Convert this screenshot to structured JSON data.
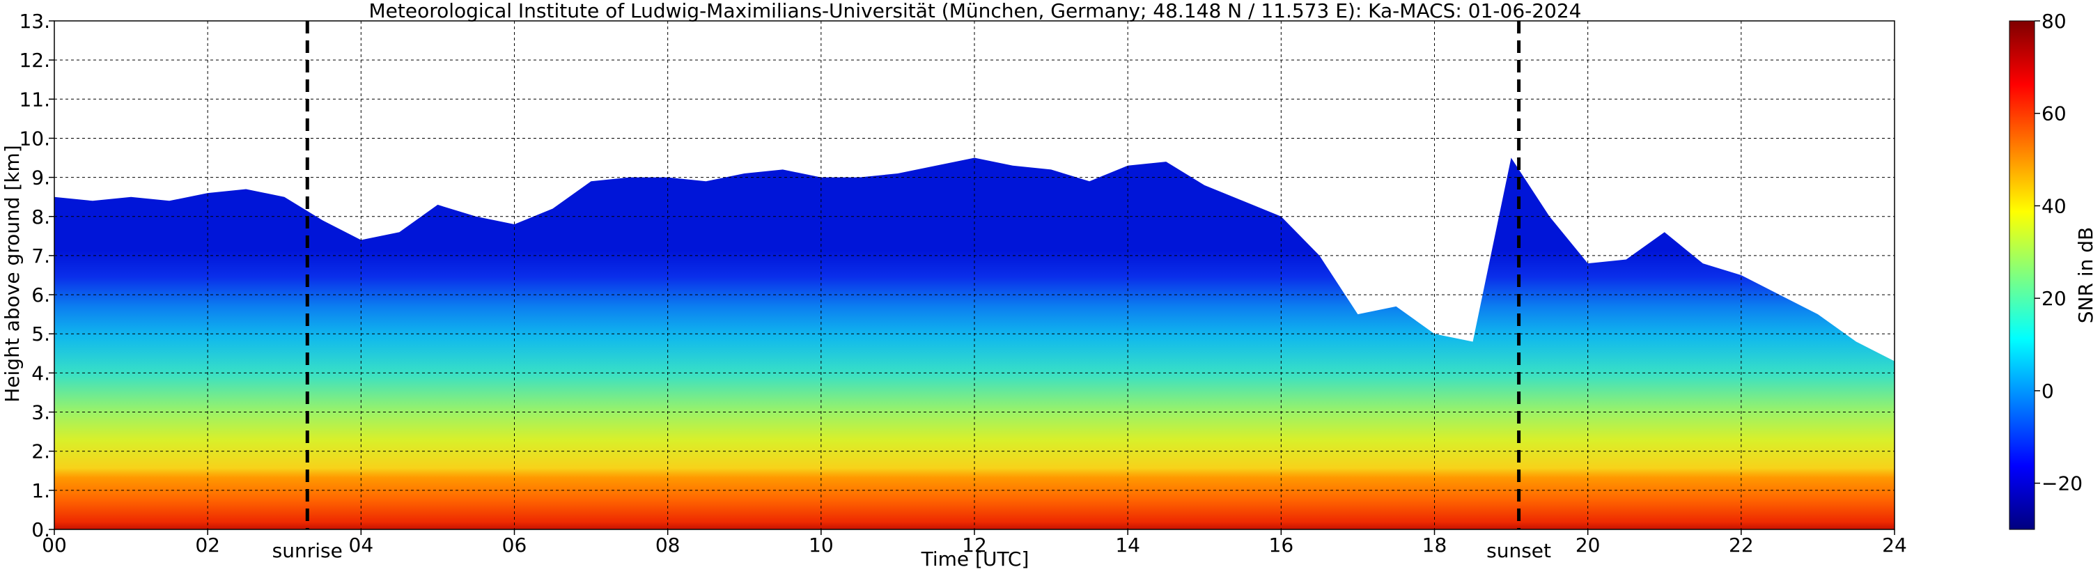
{
  "chart_data": {
    "type": "heatmap",
    "title": "Meteorological Institute of Ludwig-Maximilians-Universität (München, Germany; 48.148 N / 11.573 E):    Ka-MACS: 01-06-2024",
    "xlabel": "Time [UTC]",
    "ylabel": "Height above ground [km]",
    "xlim": [
      0,
      24
    ],
    "ylim": [
      0,
      13
    ],
    "x_ticks": [
      "00",
      "02",
      "04",
      "06",
      "08",
      "10",
      "12",
      "14",
      "16",
      "18",
      "20",
      "22",
      "24"
    ],
    "y_ticks": [
      "0.",
      "1.",
      "2.",
      "3.",
      "4.",
      "5.",
      "6.",
      "7.",
      "8.",
      "9.",
      "10.",
      "11.",
      "12.",
      "13."
    ],
    "grid": true,
    "colormap": "jet",
    "colorbar": {
      "label": "SNR in dB",
      "range": [
        -30,
        80
      ],
      "ticks": [
        "80",
        "60",
        "40",
        "20",
        "0",
        "−20"
      ],
      "tick_values": [
        80,
        60,
        40,
        20,
        0,
        -20
      ]
    },
    "markers": [
      {
        "label": "sunrise",
        "x": 3.3
      },
      {
        "label": "sunset",
        "x": 19.1
      }
    ],
    "cloud_top_km": {
      "x": [
        0,
        0.5,
        1,
        1.5,
        2,
        2.5,
        3,
        3.5,
        4,
        4.5,
        5,
        5.5,
        6,
        6.5,
        7,
        7.5,
        8,
        8.5,
        9,
        9.5,
        10,
        10.5,
        11,
        11.5,
        12,
        12.5,
        13,
        13.5,
        14,
        14.5,
        15,
        15.5,
        16,
        16.5,
        17,
        17.5,
        18,
        18.5,
        19,
        19.5,
        20,
        20.5,
        21,
        21.5,
        22,
        22.5,
        23,
        23.5,
        24
      ],
      "y": [
        8.5,
        8.4,
        8.5,
        8.4,
        8.6,
        8.7,
        8.5,
        7.9,
        7.4,
        7.6,
        8.3,
        8.0,
        7.8,
        8.2,
        8.9,
        9.0,
        9.0,
        8.9,
        9.1,
        9.2,
        9.0,
        9.0,
        9.1,
        9.3,
        9.5,
        9.3,
        9.2,
        8.9,
        9.3,
        9.4,
        8.8,
        8.4,
        8.0,
        7.0,
        5.5,
        5.7,
        5.0,
        4.8,
        9.5,
        8.0,
        6.8,
        6.9,
        7.6,
        6.8,
        6.5,
        6.0,
        5.5,
        4.8,
        4.3
      ]
    }
  }
}
